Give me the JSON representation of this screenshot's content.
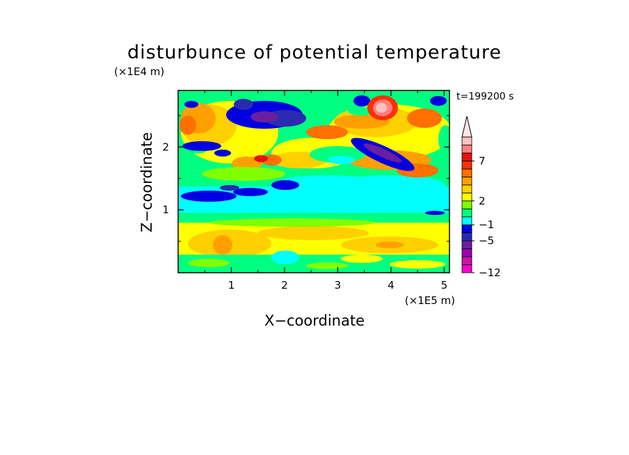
{
  "chart_data": {
    "type": "heatmap",
    "title": "disturbunce of potential temperature",
    "time_label": "t=199200 s",
    "xlabel": "X−coordinate",
    "ylabel": "Z−coordinate",
    "x_unit": "(×1E5 m)",
    "y_unit": "(×1E4 m)",
    "xlim": [
      0,
      5.1
    ],
    "ylim": [
      0,
      2.9
    ],
    "x_ticks": [
      {
        "v": 1,
        "label": "1"
      },
      {
        "v": 2,
        "label": "2"
      },
      {
        "v": 3,
        "label": "3"
      },
      {
        "v": 4,
        "label": "4"
      },
      {
        "v": 5,
        "label": "5"
      }
    ],
    "x_minor": [
      0.5,
      1.5,
      2.5,
      3.5,
      4.5
    ],
    "y_ticks": [
      {
        "v": 1,
        "label": "1"
      },
      {
        "v": 2,
        "label": "2"
      }
    ],
    "y_minor": [
      0.5,
      1.5,
      2.5
    ],
    "colorbar": {
      "levels": [
        -12,
        -10,
        -8,
        -6.5,
        -5,
        -3,
        -1,
        0,
        1,
        2,
        3,
        4,
        5,
        6,
        7,
        8,
        9,
        10
      ],
      "colors": [
        "#ff00cc",
        "#cc11aa",
        "#9900aa",
        "#6a1fa0",
        "#2a2ab0",
        "#0000e0",
        "#00ffff",
        "#00ff80",
        "#80ff00",
        "#ffff00",
        "#ffd000",
        "#ffa000",
        "#ff7000",
        "#ff3000",
        "#e81010",
        "#ff8080",
        "#ffc0c0"
      ],
      "labels": [
        {
          "v": -12,
          "label": "−12"
        },
        {
          "v": -5,
          "label": "−5"
        },
        {
          "v": -1,
          "label": "−1"
        },
        {
          "v": 2,
          "label": "2"
        },
        {
          "v": 7,
          "label": "7"
        }
      ],
      "extend_max_color": "#ffe6e6"
    }
  }
}
